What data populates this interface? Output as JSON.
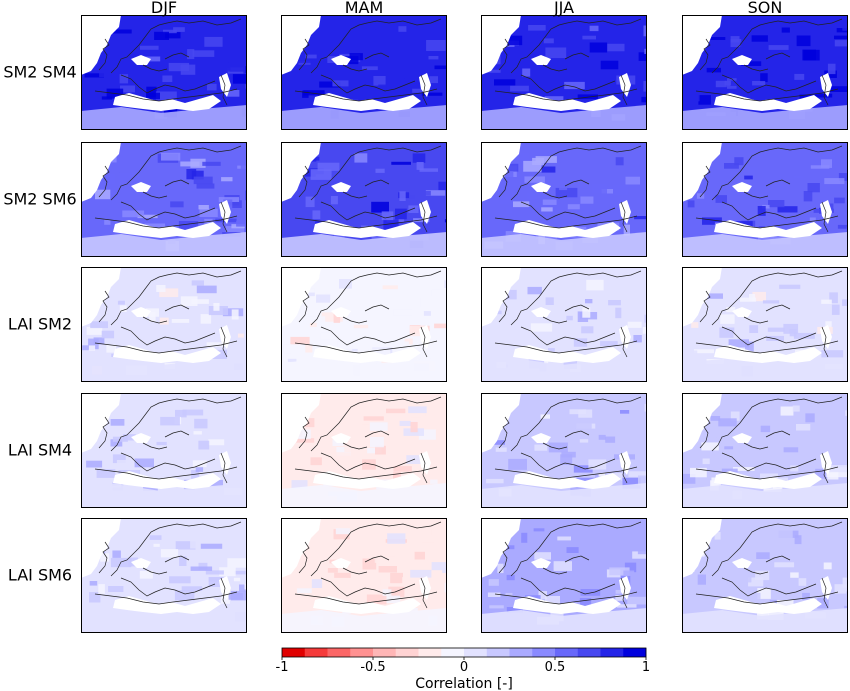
{
  "chart_data": {
    "type": "heatmap",
    "columns": [
      "DJF",
      "MAM",
      "JJA",
      "SON"
    ],
    "rows": [
      "SM2 SM4",
      "SM2 SM6",
      "LAI SM2",
      "LAI SM4",
      "LAI SM6"
    ],
    "approx_mean_correlation": [
      [
        0.8,
        0.85,
        0.75,
        0.85
      ],
      [
        0.55,
        0.7,
        0.55,
        0.6
      ],
      [
        0.05,
        -0.1,
        0.1,
        0.05
      ],
      [
        0.1,
        -0.15,
        0.2,
        0.15
      ],
      [
        0.1,
        -0.15,
        0.25,
        0.15
      ]
    ],
    "colorbar": {
      "label": "Correlation [-]",
      "min": -1,
      "max": 1,
      "ticks": [
        -1,
        -0.5,
        0,
        0.5,
        1
      ],
      "tick_labels": [
        "-1",
        "-0.5",
        "0",
        "0.5",
        "1"
      ],
      "colors": [
        "#e00000",
        "#f53a3a",
        "#fb6666",
        "#ff9191",
        "#ffb6b6",
        "#ffd3d3",
        "#ffebeb",
        "#f5f5ff",
        "#e2e2ff",
        "#c8c8ff",
        "#aaaaff",
        "#8a8aff",
        "#6868fa",
        "#4848f0",
        "#2424e8",
        "#0000dd"
      ]
    }
  }
}
